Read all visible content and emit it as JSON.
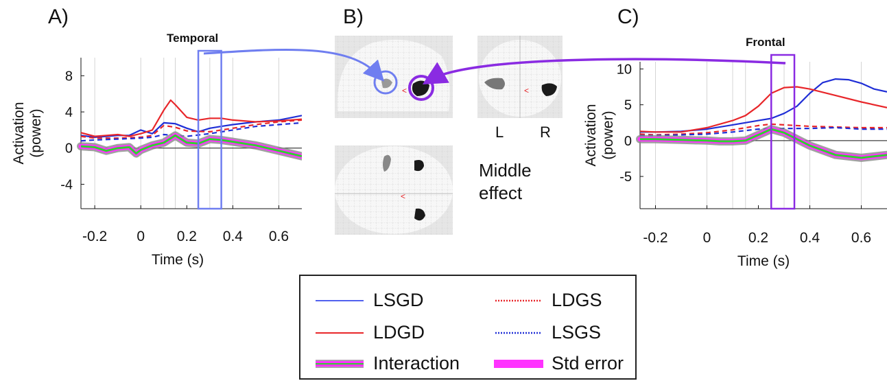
{
  "panels": {
    "a": {
      "label": "A)",
      "title": "Temporal"
    },
    "b": {
      "label": "B)",
      "effect_lines": [
        "Middle",
        "effect"
      ],
      "left": "L",
      "right": "R"
    },
    "c": {
      "label": "C)",
      "title": "Frontal"
    }
  },
  "colors": {
    "LSGD": "#1f2ed6",
    "LDGD": "#e8262a",
    "LDGS": "#e8262a",
    "LSGS": "#1f2ed6",
    "interaction": "#2fd12f",
    "std_error": "#ff33ff",
    "temporal_window": "#6f7ef0",
    "frontal_window": "#8a2be2"
  },
  "legend": {
    "items": [
      {
        "key": "LSGD",
        "label": "LSGD",
        "style": "solid",
        "color": "#5060ee"
      },
      {
        "key": "LDGS",
        "label": "LDGS",
        "style": "dotted",
        "color": "#e8262a"
      },
      {
        "key": "LDGD",
        "label": "LDGD",
        "style": "solid",
        "color": "#e8262a"
      },
      {
        "key": "LSGS",
        "label": "LSGS",
        "style": "dotted",
        "color": "#1f2ed6"
      },
      {
        "key": "interaction",
        "label": "Interaction",
        "style": "interaction",
        "color": "#2fd12f"
      },
      {
        "key": "std_error",
        "label": "Std error",
        "style": "band",
        "color": "#ff33ff"
      }
    ]
  },
  "chart_data": [
    {
      "id": "temporal",
      "type": "line",
      "title": "Temporal",
      "xlabel": "Time (s)",
      "ylabel": "Activation (power)",
      "xlim": [
        -0.26,
        0.7
      ],
      "ylim": [
        -6.7,
        10
      ],
      "xticks": [
        -0.2,
        0,
        0.2,
        0.4,
        0.6
      ],
      "xtick_labels": [
        "-0.2",
        "0",
        "0.2",
        "0.4",
        "0.6"
      ],
      "yticks": [
        -4,
        0,
        4,
        8
      ],
      "ytick_labels": [
        "-4",
        "0",
        "4",
        "8"
      ],
      "vlines": [
        -0.2,
        0,
        0.1,
        0.15,
        0.3,
        0.4,
        0.6
      ],
      "window": [
        0.25,
        0.35
      ],
      "series": [
        {
          "name": "LSGD",
          "style": "solid",
          "x": [
            -0.26,
            -0.2,
            -0.15,
            -0.1,
            -0.05,
            0,
            0.05,
            0.1,
            0.15,
            0.2,
            0.25,
            0.3,
            0.35,
            0.4,
            0.5,
            0.6,
            0.7
          ],
          "y": [
            1.4,
            1.2,
            1.3,
            1.4,
            1.4,
            2.0,
            1.6,
            2.8,
            2.7,
            2.2,
            1.8,
            2.2,
            2.4,
            2.6,
            2.9,
            3.1,
            3.6
          ]
        },
        {
          "name": "LDGD",
          "style": "solid",
          "x": [
            -0.26,
            -0.2,
            -0.15,
            -0.1,
            -0.05,
            0,
            0.05,
            0.1,
            0.13,
            0.15,
            0.2,
            0.25,
            0.3,
            0.35,
            0.4,
            0.5,
            0.6,
            0.7
          ],
          "y": [
            1.7,
            1.3,
            1.4,
            1.5,
            1.3,
            1.6,
            2.0,
            4.2,
            5.3,
            4.8,
            3.4,
            3.1,
            3.3,
            3.3,
            3.1,
            2.9,
            3.0,
            3.2
          ]
        },
        {
          "name": "LDGS",
          "style": "dashed",
          "x": [
            -0.26,
            -0.2,
            -0.1,
            0,
            0.05,
            0.1,
            0.15,
            0.2,
            0.3,
            0.4,
            0.5,
            0.6,
            0.7
          ],
          "y": [
            1.3,
            1.1,
            1.1,
            1.2,
            1.4,
            2.5,
            2.3,
            1.9,
            1.8,
            2.2,
            2.6,
            2.9,
            3.1
          ]
        },
        {
          "name": "LSGS",
          "style": "dashed",
          "x": [
            -0.26,
            -0.2,
            -0.1,
            0,
            0.05,
            0.1,
            0.15,
            0.2,
            0.3,
            0.4,
            0.5,
            0.6,
            0.7
          ],
          "y": [
            0.8,
            0.9,
            1.0,
            1.1,
            1.2,
            1.5,
            1.4,
            1.3,
            1.6,
            2.0,
            2.4,
            2.6,
            2.8
          ]
        },
        {
          "name": "Interaction",
          "style": "interaction",
          "x": [
            -0.26,
            -0.2,
            -0.15,
            -0.1,
            -0.05,
            -0.02,
            0,
            0.05,
            0.1,
            0.15,
            0.2,
            0.25,
            0.3,
            0.35,
            0.4,
            0.5,
            0.6,
            0.7
          ],
          "y": [
            0.2,
            0.1,
            -0.3,
            0.0,
            0.1,
            -0.6,
            -0.2,
            0.3,
            0.6,
            1.4,
            0.6,
            0.5,
            1.0,
            0.9,
            0.7,
            0.3,
            -0.3,
            -0.9
          ]
        }
      ]
    },
    {
      "id": "frontal",
      "type": "line",
      "title": "Frontal",
      "xlabel": "Time (s)",
      "ylabel": "Activation (power)",
      "xlim": [
        -0.26,
        0.7
      ],
      "ylim": [
        -9.5,
        11
      ],
      "xticks": [
        -0.2,
        0,
        0.2,
        0.4,
        0.6
      ],
      "xtick_labels": [
        "-0.2",
        "0",
        "0.2",
        "0.4",
        "0.6"
      ],
      "yticks": [
        -5,
        0,
        5,
        10
      ],
      "ytick_labels": [
        "-5",
        "0",
        "5",
        "10"
      ],
      "vlines": [
        -0.2,
        0,
        0.1,
        0.15,
        0.3,
        0.4,
        0.6
      ],
      "window": [
        0.25,
        0.34
      ],
      "series": [
        {
          "name": "LSGD",
          "style": "solid",
          "x": [
            -0.26,
            -0.2,
            -0.1,
            0,
            0.1,
            0.2,
            0.25,
            0.3,
            0.35,
            0.4,
            0.45,
            0.5,
            0.55,
            0.6,
            0.65,
            0.7
          ],
          "y": [
            1.2,
            1.2,
            1.3,
            1.6,
            2.2,
            2.8,
            3.1,
            3.8,
            4.8,
            6.6,
            8.1,
            8.6,
            8.5,
            8.0,
            7.2,
            6.8
          ]
        },
        {
          "name": "LDGD",
          "style": "solid",
          "x": [
            -0.26,
            -0.2,
            -0.1,
            0,
            0.05,
            0.1,
            0.15,
            0.2,
            0.25,
            0.3,
            0.35,
            0.4,
            0.5,
            0.6,
            0.7
          ],
          "y": [
            1.3,
            1.2,
            1.2,
            1.8,
            2.3,
            2.8,
            3.5,
            4.8,
            6.6,
            7.4,
            7.5,
            7.2,
            6.3,
            5.4,
            4.6
          ]
        },
        {
          "name": "LDGS",
          "style": "dashed",
          "x": [
            -0.26,
            -0.2,
            -0.1,
            0,
            0.1,
            0.2,
            0.25,
            0.3,
            0.4,
            0.5,
            0.6,
            0.7
          ],
          "y": [
            0.9,
            0.8,
            0.9,
            1.1,
            1.5,
            2.1,
            2.3,
            2.2,
            2.0,
            1.9,
            1.8,
            1.8
          ]
        },
        {
          "name": "LSGS",
          "style": "dashed",
          "x": [
            -0.26,
            -0.2,
            -0.1,
            0,
            0.1,
            0.2,
            0.25,
            0.3,
            0.4,
            0.5,
            0.6,
            0.7
          ],
          "y": [
            0.7,
            0.7,
            0.8,
            0.9,
            1.2,
            1.6,
            1.7,
            1.7,
            1.7,
            1.8,
            1.6,
            1.6
          ]
        },
        {
          "name": "Interaction",
          "style": "interaction",
          "x": [
            -0.26,
            -0.2,
            -0.1,
            0,
            0.05,
            0.1,
            0.15,
            0.2,
            0.25,
            0.3,
            0.35,
            0.4,
            0.5,
            0.6,
            0.7
          ],
          "y": [
            0.2,
            0.2,
            0.1,
            0.0,
            -0.1,
            -0.1,
            0.0,
            0.8,
            1.6,
            1.1,
            0.2,
            -0.7,
            -2.0,
            -2.4,
            -2.0
          ]
        }
      ]
    }
  ]
}
